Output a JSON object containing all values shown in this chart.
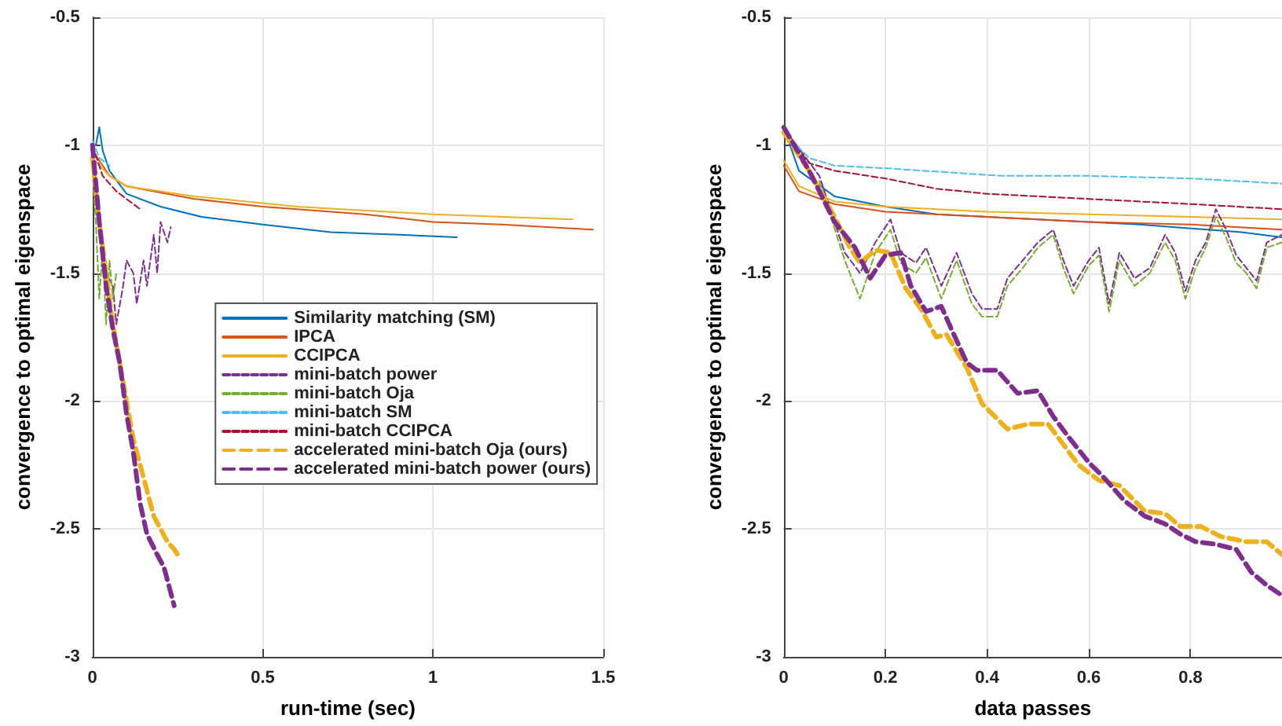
{
  "chart_data": [
    {
      "type": "line",
      "xlabel": "run-time (sec)",
      "ylabel": "convergence to optimal eigenspace",
      "xlim": [
        0,
        1.5
      ],
      "xticks": [
        0,
        0.5,
        1,
        1.5
      ],
      "ylim": [
        -3,
        -0.5
      ],
      "yticks": [
        -3,
        -2.5,
        -2,
        -1.5,
        -1,
        -0.5
      ],
      "grid": true,
      "legend": "right",
      "series": [
        {
          "name": "Similarity matching (SM)",
          "color": "#0072bd",
          "line_style": "solid",
          "x": [
            0.01,
            0.02,
            0.03,
            0.05,
            0.1,
            0.2,
            0.32,
            0.5,
            0.7,
            0.9,
            1.07
          ],
          "values": [
            -1.0,
            -0.93,
            -1.02,
            -1.1,
            -1.19,
            -1.24,
            -1.28,
            -1.31,
            -1.34,
            -1.35,
            -1.36
          ]
        },
        {
          "name": "IPCA",
          "color": "#d95319",
          "line_style": "solid",
          "x": [
            0,
            0.05,
            0.1,
            0.3,
            0.5,
            0.8,
            1.0,
            1.2,
            1.47
          ],
          "values": [
            -1.02,
            -1.12,
            -1.16,
            -1.21,
            -1.24,
            -1.27,
            -1.3,
            -1.31,
            -1.33
          ]
        },
        {
          "name": "CCIPCA",
          "color": "#edb120",
          "line_style": "solid",
          "x": [
            0,
            0.05,
            0.1,
            0.3,
            0.6,
            1.0,
            1.41
          ],
          "values": [
            -1.05,
            -1.12,
            -1.16,
            -1.2,
            -1.24,
            -1.27,
            -1.29
          ]
        },
        {
          "name": "mini-batch power",
          "color": "#7e2f8e",
          "line_style": "dotted",
          "x": [
            0.02,
            0.04,
            0.06,
            0.07,
            0.09,
            0.1,
            0.12,
            0.13,
            0.15,
            0.16,
            0.18,
            0.19,
            0.2,
            0.22,
            0.23
          ],
          "values": [
            -1.3,
            -1.5,
            -1.55,
            -1.7,
            -1.55,
            -1.45,
            -1.5,
            -1.62,
            -1.45,
            -1.55,
            -1.35,
            -1.5,
            -1.3,
            -1.38,
            -1.32
          ]
        },
        {
          "name": "mini-batch Oja",
          "color": "#77ac30",
          "line_style": "dotted",
          "x": [
            0,
            0.01,
            0.02,
            0.03,
            0.04,
            0.05,
            0.06,
            0.07
          ],
          "values": [
            -1.1,
            -1.3,
            -1.6,
            -1.4,
            -1.7,
            -1.45,
            -1.6,
            -1.5
          ]
        },
        {
          "name": "mini-batch SM",
          "color": "#4dbeee",
          "line_style": "dotted",
          "x": [
            0,
            0.02,
            0.05
          ],
          "values": [
            -0.98,
            -1.05,
            -1.08
          ]
        },
        {
          "name": "mini-batch CCIPCA",
          "color": "#a2142f",
          "line_style": "dotted",
          "x": [
            0,
            0.03,
            0.07,
            0.14
          ],
          "values": [
            -1.0,
            -1.12,
            -1.18,
            -1.25
          ]
        },
        {
          "name": "accelerated mini-batch Oja (ours)",
          "color": "#edb120",
          "line_style": "dashed",
          "x": [
            0,
            0.02,
            0.04,
            0.06,
            0.08,
            0.1,
            0.12,
            0.15,
            0.18,
            0.2,
            0.22,
            0.24,
            0.25
          ],
          "values": [
            -1.05,
            -1.3,
            -1.5,
            -1.7,
            -1.85,
            -2.0,
            -2.15,
            -2.3,
            -2.45,
            -2.5,
            -2.55,
            -2.58,
            -2.6
          ]
        },
        {
          "name": "accelerated mini-batch power (ours)",
          "color": "#7e2f8e",
          "line_style": "dashed",
          "x": [
            0,
            0.02,
            0.04,
            0.06,
            0.08,
            0.1,
            0.12,
            0.14,
            0.16,
            0.19,
            0.21,
            0.24
          ],
          "values": [
            -1.0,
            -1.3,
            -1.55,
            -1.72,
            -1.85,
            -2.05,
            -2.2,
            -2.4,
            -2.52,
            -2.6,
            -2.65,
            -2.8
          ]
        }
      ]
    },
    {
      "type": "line",
      "xlabel": "data passes",
      "ylabel": "convergence to optimal eigenspace",
      "xlim": [
        0,
        0.98
      ],
      "xticks": [
        0,
        0.2,
        0.4,
        0.6,
        0.8
      ],
      "ylim": [
        -3,
        -0.5
      ],
      "yticks": [
        -3,
        -2.5,
        -2,
        -1.5,
        -1,
        -0.5
      ],
      "grid": true,
      "series": [
        {
          "color": "#0072bd",
          "line_style": "solid",
          "x": [
            0,
            0.03,
            0.1,
            0.2,
            0.3,
            0.5,
            0.7,
            0.9,
            0.98
          ],
          "values": [
            -0.93,
            -1.1,
            -1.2,
            -1.24,
            -1.27,
            -1.29,
            -1.31,
            -1.34,
            -1.36
          ]
        },
        {
          "color": "#d95319",
          "line_style": "solid",
          "x": [
            0,
            0.03,
            0.1,
            0.2,
            0.4,
            0.6,
            0.8,
            0.98
          ],
          "values": [
            -1.08,
            -1.18,
            -1.23,
            -1.26,
            -1.28,
            -1.3,
            -1.31,
            -1.33
          ]
        },
        {
          "color": "#edb120",
          "line_style": "solid",
          "x": [
            0,
            0.03,
            0.1,
            0.2,
            0.4,
            0.6,
            0.8,
            0.98
          ],
          "values": [
            -1.06,
            -1.16,
            -1.22,
            -1.24,
            -1.26,
            -1.27,
            -1.28,
            -1.29
          ]
        },
        {
          "color": "#7e2f8e",
          "line_style": "dotted",
          "x": [
            0.01,
            0.07,
            0.12,
            0.15,
            0.18,
            0.21,
            0.23,
            0.26,
            0.28,
            0.31,
            0.34,
            0.37,
            0.39,
            0.42,
            0.44,
            0.47,
            0.5,
            0.53,
            0.55,
            0.57,
            0.6,
            0.62,
            0.64,
            0.66,
            0.69,
            0.72,
            0.75,
            0.77,
            0.79,
            0.81,
            0.83,
            0.85,
            0.87,
            0.89,
            0.91,
            0.93,
            0.95,
            0.98
          ],
          "values": [
            -0.96,
            -1.12,
            -1.42,
            -1.5,
            -1.38,
            -1.29,
            -1.42,
            -1.46,
            -1.4,
            -1.55,
            -1.42,
            -1.58,
            -1.64,
            -1.64,
            -1.52,
            -1.45,
            -1.38,
            -1.33,
            -1.45,
            -1.55,
            -1.45,
            -1.4,
            -1.62,
            -1.42,
            -1.52,
            -1.48,
            -1.35,
            -1.42,
            -1.57,
            -1.45,
            -1.38,
            -1.25,
            -1.33,
            -1.43,
            -1.48,
            -1.53,
            -1.38,
            -1.35
          ]
        },
        {
          "color": "#77ac30",
          "line_style": "dotted",
          "x": [
            0.07,
            0.12,
            0.15,
            0.18,
            0.21,
            0.23,
            0.26,
            0.28,
            0.31,
            0.34,
            0.37,
            0.39,
            0.42,
            0.44,
            0.47,
            0.5,
            0.53,
            0.55,
            0.57,
            0.6,
            0.62,
            0.64,
            0.66,
            0.69,
            0.72,
            0.75,
            0.77,
            0.79,
            0.81,
            0.83,
            0.85,
            0.87,
            0.89,
            0.91,
            0.93,
            0.95,
            0.98
          ],
          "values": [
            -1.14,
            -1.45,
            -1.6,
            -1.42,
            -1.33,
            -1.46,
            -1.5,
            -1.44,
            -1.6,
            -1.45,
            -1.62,
            -1.67,
            -1.67,
            -1.55,
            -1.48,
            -1.4,
            -1.35,
            -1.48,
            -1.58,
            -1.47,
            -1.43,
            -1.65,
            -1.45,
            -1.55,
            -1.5,
            -1.38,
            -1.45,
            -1.6,
            -1.48,
            -1.4,
            -1.28,
            -1.36,
            -1.46,
            -1.5,
            -1.56,
            -1.4,
            -1.38
          ]
        },
        {
          "color": "#4dbeee",
          "line_style": "dotted",
          "x": [
            0,
            0.05,
            0.1,
            0.2,
            0.43,
            0.6,
            0.8,
            0.98
          ],
          "values": [
            -0.95,
            -1.05,
            -1.08,
            -1.09,
            -1.12,
            -1.12,
            -1.13,
            -1.15
          ]
        },
        {
          "color": "#a2142f",
          "line_style": "dotted",
          "x": [
            0,
            0.05,
            0.1,
            0.2,
            0.3,
            0.4,
            0.6,
            0.8,
            0.98
          ],
          "values": [
            -0.95,
            -1.07,
            -1.1,
            -1.13,
            -1.17,
            -1.19,
            -1.21,
            -1.23,
            -1.25
          ]
        },
        {
          "color": "#edb120",
          "line_style": "dashed",
          "x": [
            0,
            0.05,
            0.1,
            0.13,
            0.15,
            0.18,
            0.21,
            0.24,
            0.27,
            0.3,
            0.32,
            0.36,
            0.39,
            0.44,
            0.48,
            0.52,
            0.58,
            0.62,
            0.66,
            0.71,
            0.75,
            0.78,
            0.82,
            0.86,
            0.91,
            0.95,
            0.98
          ],
          "values": [
            -0.95,
            -1.1,
            -1.28,
            -1.4,
            -1.46,
            -1.41,
            -1.42,
            -1.56,
            -1.64,
            -1.75,
            -1.74,
            -1.87,
            -2.01,
            -2.11,
            -2.09,
            -2.09,
            -2.25,
            -2.31,
            -2.33,
            -2.43,
            -2.44,
            -2.49,
            -2.49,
            -2.53,
            -2.55,
            -2.55,
            -2.6
          ]
        },
        {
          "color": "#7e2f8e",
          "line_style": "dashed",
          "x": [
            0,
            0.05,
            0.1,
            0.14,
            0.17,
            0.2,
            0.23,
            0.25,
            0.28,
            0.31,
            0.33,
            0.36,
            0.38,
            0.42,
            0.46,
            0.5,
            0.53,
            0.56,
            0.6,
            0.63,
            0.67,
            0.71,
            0.75,
            0.78,
            0.81,
            0.85,
            0.89,
            0.92,
            0.95,
            0.98
          ],
          "values": [
            -0.93,
            -1.1,
            -1.3,
            -1.4,
            -1.52,
            -1.43,
            -1.42,
            -1.55,
            -1.65,
            -1.63,
            -1.72,
            -1.85,
            -1.88,
            -1.88,
            -1.97,
            -1.96,
            -2.06,
            -2.14,
            -2.24,
            -2.3,
            -2.39,
            -2.45,
            -2.48,
            -2.52,
            -2.55,
            -2.56,
            -2.58,
            -2.67,
            -2.72,
            -2.76
          ]
        }
      ]
    }
  ]
}
